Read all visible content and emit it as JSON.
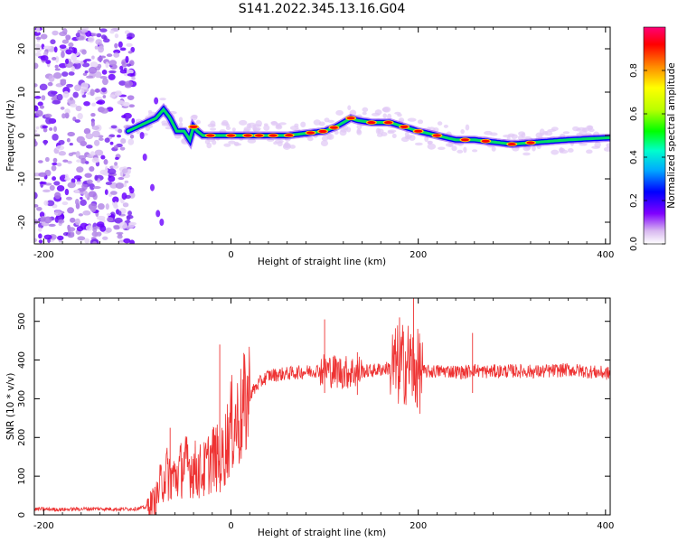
{
  "figure_title": "S141.2022.345.13.16.G04",
  "chart_data": [
    {
      "type": "heatmap",
      "title": "",
      "xlabel": "Height of straight line (km)",
      "ylabel": "Frequency (Hz)",
      "xlim": [
        -210,
        405
      ],
      "ylim": [
        -25,
        25
      ],
      "xticks": [
        -200,
        0,
        200,
        400
      ],
      "yticks": [
        20,
        10,
        0,
        -10,
        -20
      ],
      "colorbar": {
        "label": "Normalized spectral amplitude",
        "range": [
          0,
          1
        ],
        "ticks": [
          "0.0",
          "0.2",
          "0.4",
          "0.6",
          "0.8"
        ],
        "colors": [
          "#ffffff",
          "#d8b8f0",
          "#8000ff",
          "#0000ff",
          "#00aaff",
          "#00ffcc",
          "#00ff00",
          "#bbff00",
          "#ffff00",
          "#ff8800",
          "#ff0000",
          "#ff0077"
        ]
      },
      "ridge_frequency": {
        "x": [
          -110,
          -100,
          -90,
          -80,
          -72,
          -65,
          -58,
          -50,
          -44,
          -40,
          -36,
          -30,
          0,
          30,
          60,
          80,
          100,
          112,
          120,
          128,
          135,
          150,
          170,
          185,
          200,
          220,
          240,
          260,
          280,
          300,
          330,
          360,
          405
        ],
        "y": [
          1,
          2,
          3,
          4,
          6,
          4,
          1,
          1,
          -1,
          2,
          1,
          0,
          0,
          0,
          0,
          0.5,
          1,
          2,
          3,
          4,
          3.5,
          3,
          3,
          2,
          1,
          0,
          -1,
          -1,
          -1.5,
          -2,
          -1.5,
          -1,
          -0.5
        ]
      },
      "noise_region_x": [
        -210,
        -110
      ]
    },
    {
      "type": "line",
      "title": "",
      "xlabel": "Height of straight line (km)",
      "ylabel": "SNR (10 * v/v)",
      "xlim": [
        -210,
        405
      ],
      "ylim": [
        0,
        560
      ],
      "xticks": [
        -200,
        0,
        200,
        400
      ],
      "yticks": [
        0,
        100,
        200,
        300,
        400,
        500
      ],
      "color": "#ee3333",
      "series": [
        {
          "x": [
            -210,
            -180,
            -150,
            -120,
            -100,
            -90,
            -80,
            -75,
            -70,
            -60,
            -50,
            -40,
            -30,
            -20,
            -10,
            0,
            10,
            20,
            30,
            40,
            60,
            80,
            100,
            120,
            150,
            170,
            180,
            190,
            195,
            200,
            210,
            230,
            250,
            258,
            270,
            300,
            330,
            360,
            405
          ],
          "y": [
            15,
            14,
            16,
            15,
            16,
            20,
            40,
            80,
            110,
            95,
            130,
            120,
            110,
            150,
            140,
            230,
            250,
            310,
            340,
            360,
            365,
            370,
            375,
            368,
            372,
            380,
            385,
            395,
            380,
            370,
            370,
            372,
            368,
            375,
            370,
            372,
            370,
            375,
            365
          ]
        }
      ],
      "spikes": [
        {
          "x": -65,
          "y": 225
        },
        {
          "x": -12,
          "y": 440
        },
        {
          "x": 100,
          "y": 505
        },
        {
          "x": 135,
          "y": 420
        },
        {
          "x": 180,
          "y": 510
        },
        {
          "x": 195,
          "y": 560
        },
        {
          "x": 258,
          "y": 470
        }
      ]
    }
  ]
}
